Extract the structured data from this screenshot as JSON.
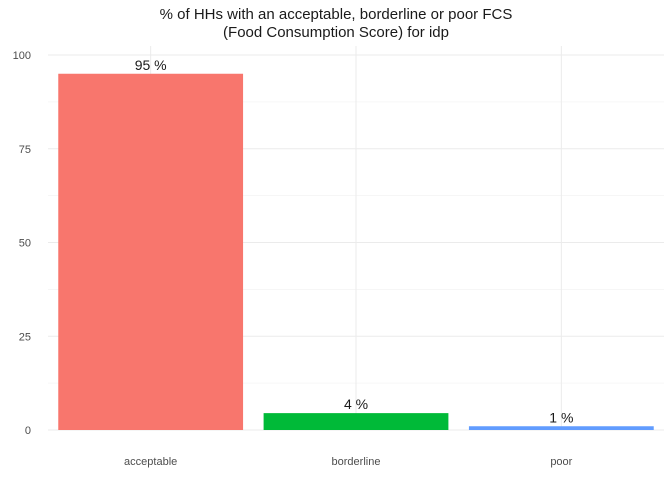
{
  "chart_data": {
    "type": "bar",
    "title": "% of HHs with an acceptable, borderline or poor FCS",
    "subtitle": "(Food Consumption Score) for idp",
    "xlabel": "",
    "ylabel": "",
    "categories": [
      "acceptable",
      "borderline",
      "poor"
    ],
    "values": [
      95,
      4.5,
      1
    ],
    "data_labels": [
      "95 %",
      "4 %",
      "1 %"
    ],
    "colors": [
      "#F8766D",
      "#00BA38",
      "#619CFF"
    ],
    "ylim": [
      0,
      100
    ],
    "yticks": [
      0,
      25,
      50,
      75,
      100
    ],
    "grid": true,
    "legend": "none"
  }
}
